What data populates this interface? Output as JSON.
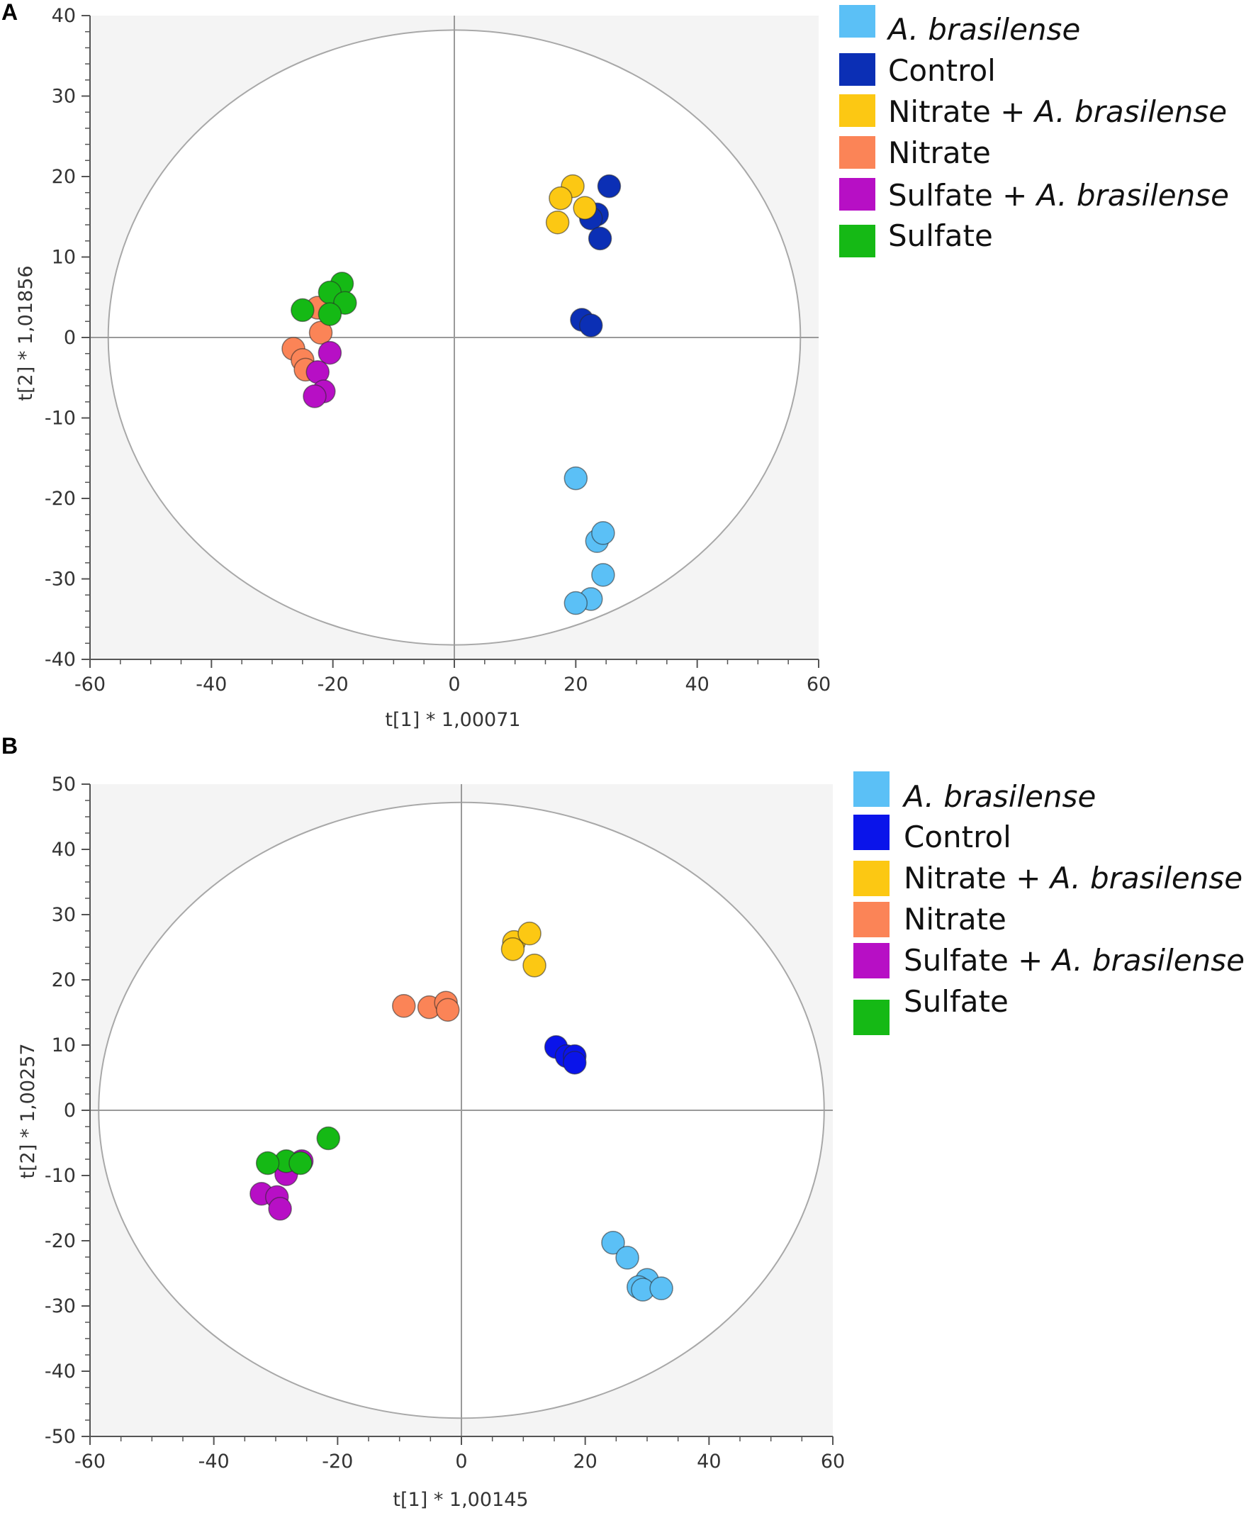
{
  "chart_data": [
    {
      "panel": "A",
      "type": "scatter",
      "xlabel": "t[1] * 1,00071",
      "ylabel": "t[2] * 1,01856",
      "xlim": [
        -60,
        60
      ],
      "ylim": [
        -40,
        40
      ],
      "xticks": [
        -60,
        -40,
        -20,
        0,
        20,
        40,
        60
      ],
      "yticks": [
        -40,
        -30,
        -20,
        -10,
        0,
        10,
        20,
        30,
        40
      ],
      "ellipse": {
        "rx": 57,
        "ry": 38.2
      },
      "legend_position": "right",
      "series": [
        {
          "name": "A. brasilense",
          "color": "#5bc0f6",
          "points": [
            [
              20,
              -17.5
            ],
            [
              23.5,
              -25.3
            ],
            [
              24.5,
              -24.3
            ],
            [
              24.5,
              -29.5
            ],
            [
              22.5,
              -32.5
            ],
            [
              20,
              -33
            ]
          ]
        },
        {
          "name": "Control",
          "color": "#0b2fb5",
          "points": [
            [
              25.5,
              18.8
            ],
            [
              23.5,
              15.3
            ],
            [
              22.5,
              14.8
            ],
            [
              24,
              12.3
            ],
            [
              21,
              2.2
            ],
            [
              22.5,
              1.5
            ]
          ]
        },
        {
          "name": "Nitrate + A. brasilense",
          "color": "#fcc813",
          "points": [
            [
              19.5,
              18.8
            ],
            [
              17.5,
              17.3
            ],
            [
              21.5,
              16.1
            ],
            [
              17,
              14.3
            ]
          ]
        },
        {
          "name": "Nitrate",
          "color": "#fb8457",
          "points": [
            [
              -22.5,
              3.7
            ],
            [
              -22,
              0.6
            ],
            [
              -26.5,
              -1.4
            ],
            [
              -25,
              -2.8
            ],
            [
              -24.5,
              -4
            ]
          ]
        },
        {
          "name": "Sulfate + A. brasilense",
          "color": "#b70fc5",
          "points": [
            [
              -20.5,
              -1.9
            ],
            [
              -22.5,
              -4.3
            ],
            [
              -21.5,
              -6.7
            ],
            [
              -23,
              -7.3
            ]
          ]
        },
        {
          "name": "Sulfate",
          "color": "#15b915",
          "points": [
            [
              -18.5,
              6.7
            ],
            [
              -20.5,
              5.6
            ],
            [
              -18,
              4.3
            ],
            [
              -25,
              3.4
            ],
            [
              -20.5,
              2.9
            ]
          ]
        }
      ]
    },
    {
      "panel": "B",
      "type": "scatter",
      "xlabel": "t[1] * 1,00145",
      "ylabel": "t[2] * 1,00257",
      "xlim": [
        -60,
        60
      ],
      "ylim": [
        -50,
        50
      ],
      "xticks": [
        -60,
        -40,
        -20,
        0,
        20,
        40,
        60
      ],
      "yticks": [
        -50,
        -40,
        -30,
        -20,
        -10,
        0,
        10,
        20,
        30,
        40,
        50
      ],
      "ellipse": {
        "rx": 58.6,
        "ry": 47.2
      },
      "legend_position": "right",
      "series": [
        {
          "name": "A. brasilense",
          "color": "#5bc0f6",
          "points": [
            [
              24.5,
              -20.3
            ],
            [
              26.8,
              -22.6
            ],
            [
              30,
              -26
            ],
            [
              28.6,
              -27.1
            ],
            [
              29.3,
              -27.5
            ],
            [
              32.3,
              -27.3
            ]
          ]
        },
        {
          "name": "Control",
          "color": "#0a14ea",
          "points": [
            [
              15.3,
              9.7
            ],
            [
              17,
              8.3
            ],
            [
              18.3,
              8.3
            ],
            [
              18.3,
              7.3
            ]
          ]
        },
        {
          "name": "Nitrate + A. brasilense",
          "color": "#fcc813",
          "points": [
            [
              8.5,
              25.8
            ],
            [
              11,
              27.1
            ],
            [
              8.3,
              24.7
            ],
            [
              11.8,
              22.2
            ]
          ]
        },
        {
          "name": "Nitrate",
          "color": "#fb8457",
          "points": [
            [
              -9.3,
              16
            ],
            [
              -5.2,
              15.8
            ],
            [
              -2.5,
              16.5
            ],
            [
              -2.2,
              15.4
            ]
          ]
        },
        {
          "name": "Sulfate + A. brasilense",
          "color": "#b70fc5",
          "points": [
            [
              -25.8,
              -7.8
            ],
            [
              -28.3,
              -9.8
            ],
            [
              -32.3,
              -12.8
            ],
            [
              -29.8,
              -13.3
            ],
            [
              -29.3,
              -15.1
            ]
          ]
        },
        {
          "name": "Sulfate",
          "color": "#15b915",
          "points": [
            [
              -21.5,
              -4.3
            ],
            [
              -28.3,
              -7.8
            ],
            [
              -31.3,
              -8.1
            ],
            [
              -26,
              -8.1
            ]
          ]
        }
      ]
    }
  ]
}
